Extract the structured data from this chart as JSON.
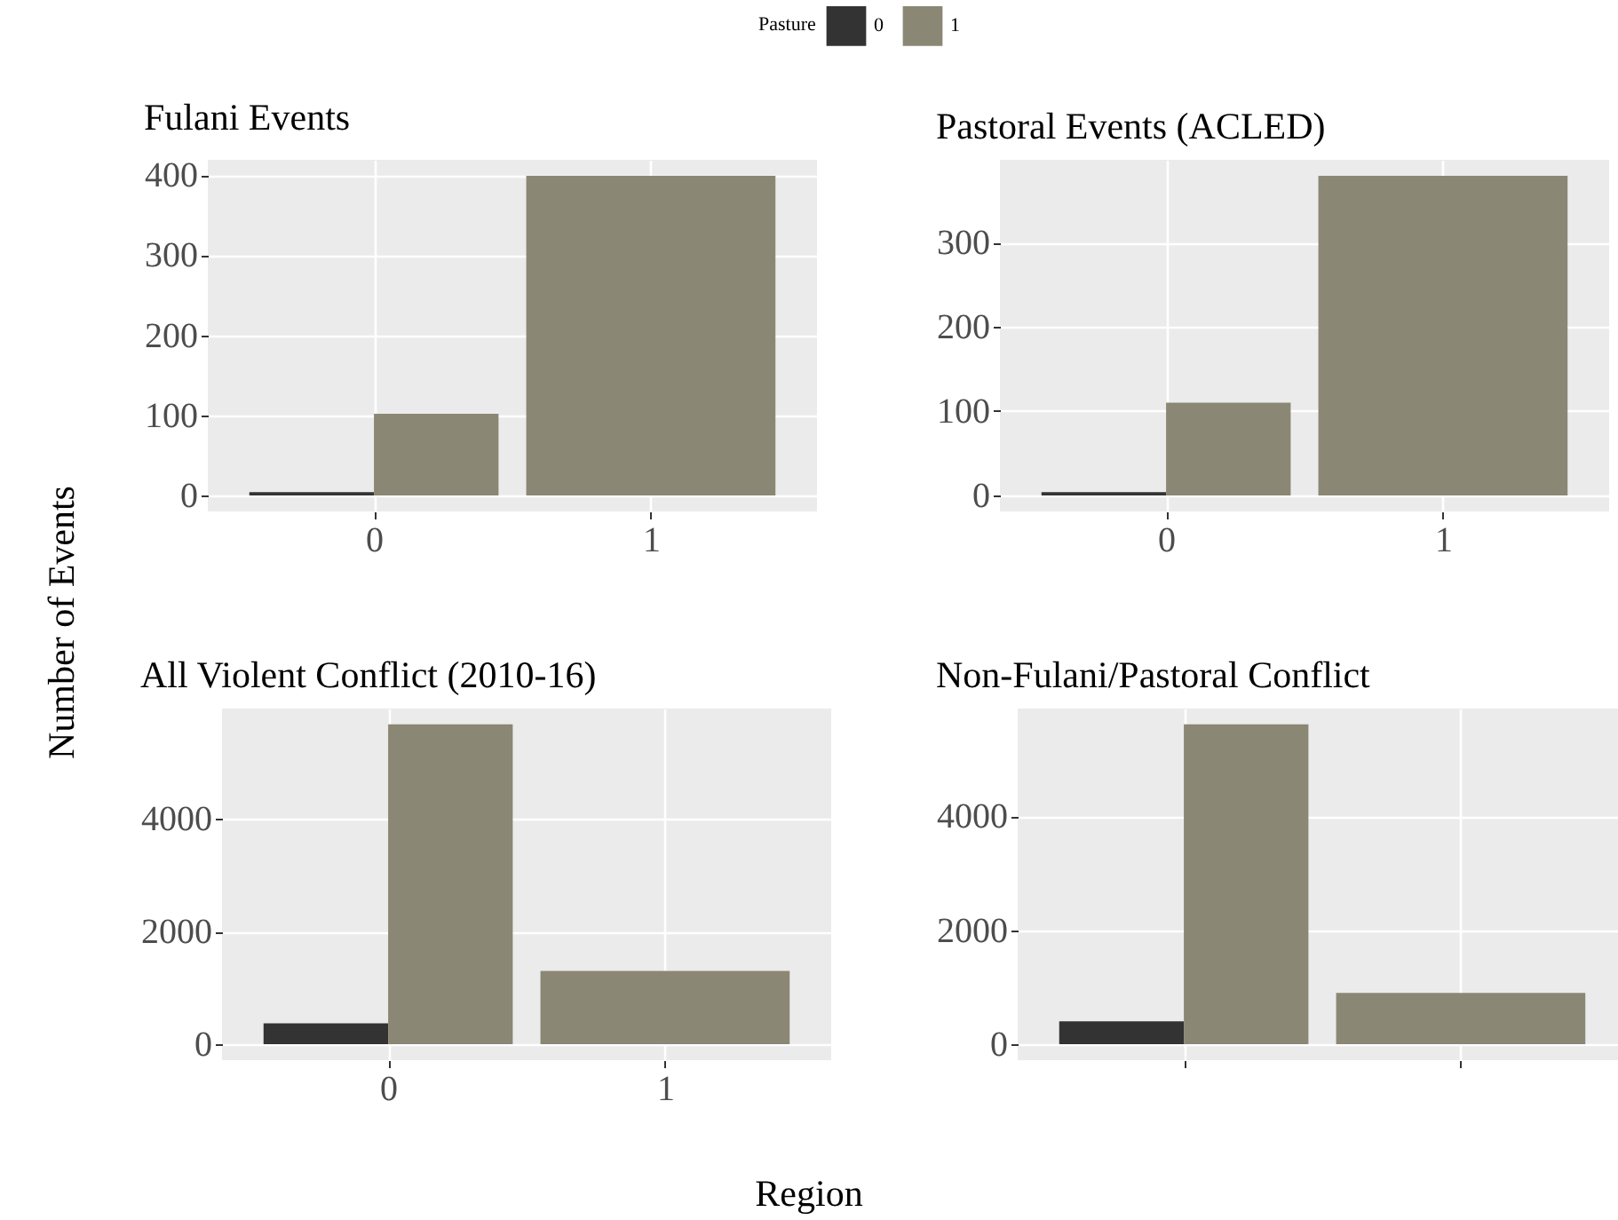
{
  "chart_data": [
    {
      "type": "bar",
      "title": "Fulani Events",
      "xlabel": "Region",
      "ylabel": "Number of Events",
      "legend_title": "Pasture",
      "legend": "top",
      "grid": true,
      "categories": [
        "0",
        "1"
      ],
      "ylim": [
        -20,
        419
      ],
      "yticks": [
        0,
        100,
        200,
        300,
        400
      ],
      "series": [
        {
          "name": "0",
          "color": "#333333",
          "values": [
            4,
            null
          ]
        },
        {
          "name": "1",
          "color": "#8b8775",
          "values": [
            102,
            399
          ]
        }
      ]
    },
    {
      "type": "bar",
      "title": "Pastoral Events (ACLED)",
      "grid": true,
      "categories": [
        "0",
        "1"
      ],
      "ylim": [
        -19,
        398
      ],
      "yticks": [
        0,
        100,
        200,
        300
      ],
      "series": [
        {
          "color": "#333333",
          "values": [
            4,
            null
          ]
        },
        {
          "color": "#8b8775",
          "values": [
            110,
            379
          ]
        }
      ]
    },
    {
      "type": "bar",
      "title": "All Violent Conflict (2010-16)",
      "grid": true,
      "categories": [
        "0",
        "1"
      ],
      "ylim": [
        -284,
        5959
      ],
      "yticks": [
        0,
        2000,
        4000
      ],
      "series": [
        {
          "color": "#333333",
          "values": [
            370,
            null
          ]
        },
        {
          "color": "#8b8775",
          "values": [
            5680,
            1300
          ]
        }
      ]
    },
    {
      "type": "bar",
      "title": "Non-Fulani/Pastoral Conflict",
      "grid": true,
      "tick_labels": "y",
      "categories": [
        null,
        null
      ],
      "ylim": [
        -280,
        5888
      ],
      "yticks": [
        0,
        2000,
        4000
      ],
      "series": [
        {
          "color": "#333333",
          "values": [
            400,
            null
          ]
        },
        {
          "color": "#8b8775",
          "values": [
            5610,
            900
          ]
        }
      ]
    }
  ]
}
